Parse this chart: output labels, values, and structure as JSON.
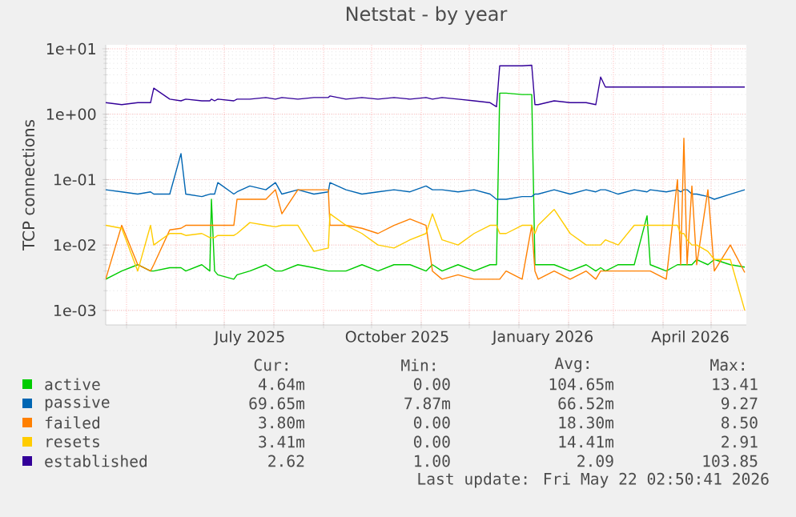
{
  "chart_data": {
    "type": "line",
    "title": "Netstat - by year",
    "ylabel": "TCP connections",
    "log": true,
    "grid": true,
    "legend": "bottom",
    "xlim": [
      "2025-04-18",
      "2026-05-23"
    ],
    "xticks": [
      {
        "value": "2025-05-01",
        "label": null
      },
      {
        "value": "2025-06-01",
        "label": null
      },
      {
        "value": "2025-07-01",
        "label": null
      },
      {
        "value": "2025-08-01",
        "label": null
      },
      {
        "value": "2025-09-01",
        "label": null
      },
      {
        "value": "2025-10-01",
        "label": null
      },
      {
        "value": "2025-11-01",
        "label": null
      },
      {
        "value": "2025-12-01",
        "label": null
      },
      {
        "value": "2026-01-01",
        "label": null
      },
      {
        "value": "2026-02-01",
        "label": null
      },
      {
        "value": "2026-03-01",
        "label": null
      },
      {
        "value": "2026-04-01",
        "label": null
      },
      {
        "value": "2026-05-01",
        "label": null
      },
      {
        "value": "2025-07-17",
        "label": "July 2025"
      },
      {
        "value": "2025-10-17",
        "label": "October 2025"
      },
      {
        "value": "2026-01-16",
        "label": "January 2026"
      },
      {
        "value": "2026-04-18",
        "label": "April 2026"
      }
    ],
    "ylim": [
      0.0006,
      11.5
    ],
    "yticks": [
      {
        "value": 0.001,
        "label": "1e-03"
      },
      {
        "value": 0.01,
        "label": "1e-02"
      },
      {
        "value": 0.1,
        "label": "1e-01"
      },
      {
        "value": 1,
        "label": "1e+00"
      },
      {
        "value": 10,
        "label": "1e+01"
      }
    ],
    "x": [
      "2025-04-18",
      "2025-04-28",
      "2025-05-08",
      "2025-05-16",
      "2025-05-18",
      "2025-05-28",
      "2025-06-04",
      "2025-06-07",
      "2025-06-17",
      "2025-06-22",
      "2025-06-23",
      "2025-06-25",
      "2025-06-27",
      "2025-07-07",
      "2025-07-09",
      "2025-07-17",
      "2025-07-27",
      "2025-08-02",
      "2025-08-06",
      "2025-08-16",
      "2025-08-26",
      "2025-09-04",
      "2025-09-05",
      "2025-09-15",
      "2025-09-25",
      "2025-10-05",
      "2025-10-15",
      "2025-10-25",
      "2025-11-04",
      "2025-11-08",
      "2025-11-14",
      "2025-11-24",
      "2025-12-04",
      "2025-12-14",
      "2025-12-18",
      "2025-12-20",
      "2025-12-24",
      "2026-01-03",
      "2026-01-09",
      "2026-01-11",
      "2026-01-13",
      "2026-01-23",
      "2026-02-02",
      "2026-02-12",
      "2026-02-18",
      "2026-02-21",
      "2026-02-24",
      "2026-03-04",
      "2026-03-14",
      "2026-03-22",
      "2026-03-24",
      "2026-04-03",
      "2026-04-10",
      "2026-04-12",
      "2026-04-14",
      "2026-04-16",
      "2026-04-19",
      "2026-04-22",
      "2026-04-29",
      "2026-05-03",
      "2026-05-13",
      "2026-05-22"
    ],
    "series": [
      {
        "name": "active",
        "color": "#00cc00",
        "values": [
          0.003,
          0.004,
          0.005,
          0.004,
          0.004,
          0.0045,
          0.0045,
          0.004,
          0.005,
          0.004,
          0.05,
          0.004,
          0.0035,
          0.003,
          0.0035,
          0.004,
          0.005,
          0.004,
          0.004,
          0.005,
          0.0045,
          0.004,
          0.004,
          0.004,
          0.005,
          0.004,
          0.005,
          0.005,
          0.004,
          0.005,
          0.004,
          0.005,
          0.004,
          0.005,
          0.005,
          2.1,
          2.1,
          2.0,
          2.0,
          0.005,
          0.005,
          0.005,
          0.004,
          0.005,
          0.004,
          0.0045,
          0.004,
          0.005,
          0.005,
          0.028,
          0.005,
          0.004,
          0.005,
          0.005,
          0.005,
          0.005,
          0.005,
          0.006,
          0.005,
          0.006,
          0.005,
          0.0046
        ]
      },
      {
        "name": "passive",
        "color": "#0066b3",
        "values": [
          0.07,
          0.065,
          0.06,
          0.065,
          0.06,
          0.06,
          0.25,
          0.06,
          0.055,
          0.06,
          0.06,
          0.06,
          0.09,
          0.06,
          0.065,
          0.08,
          0.07,
          0.09,
          0.06,
          0.07,
          0.06,
          0.065,
          0.09,
          0.07,
          0.06,
          0.065,
          0.07,
          0.065,
          0.08,
          0.07,
          0.07,
          0.065,
          0.07,
          0.06,
          0.05,
          0.05,
          0.05,
          0.055,
          0.055,
          0.06,
          0.06,
          0.07,
          0.06,
          0.07,
          0.065,
          0.07,
          0.07,
          0.06,
          0.07,
          0.065,
          0.07,
          0.065,
          0.07,
          0.065,
          0.07,
          0.07,
          0.06,
          0.06,
          0.055,
          0.05,
          0.06,
          0.07
        ]
      },
      {
        "name": "failed",
        "color": "#ff8000",
        "values": [
          0.003,
          0.02,
          0.005,
          0.004,
          0.005,
          0.017,
          0.018,
          0.02,
          0.02,
          0.02,
          0.02,
          0.02,
          0.02,
          0.02,
          0.05,
          0.05,
          0.05,
          0.07,
          0.03,
          0.07,
          0.07,
          0.07,
          0.02,
          0.02,
          0.018,
          0.015,
          0.02,
          0.025,
          0.02,
          0.004,
          0.003,
          0.0035,
          0.003,
          0.003,
          0.003,
          0.003,
          0.004,
          0.003,
          0.02,
          0.004,
          0.003,
          0.004,
          0.003,
          0.004,
          0.003,
          0.004,
          0.004,
          0.004,
          0.004,
          0.004,
          0.004,
          0.003,
          0.1,
          0.005,
          0.43,
          0.005,
          0.08,
          0.005,
          0.07,
          0.004,
          0.01,
          0.0038
        ]
      },
      {
        "name": "resets",
        "color": "#ffcc00",
        "values": [
          0.02,
          0.018,
          0.004,
          0.02,
          0.01,
          0.015,
          0.015,
          0.014,
          0.015,
          0.013,
          0.013,
          0.013,
          0.014,
          0.014,
          0.015,
          0.022,
          0.02,
          0.019,
          0.02,
          0.02,
          0.008,
          0.009,
          0.03,
          0.02,
          0.015,
          0.01,
          0.009,
          0.012,
          0.015,
          0.03,
          0.012,
          0.01,
          0.015,
          0.02,
          0.02,
          0.015,
          0.015,
          0.02,
          0.02,
          0.015,
          0.02,
          0.035,
          0.015,
          0.01,
          0.01,
          0.01,
          0.012,
          0.01,
          0.02,
          0.02,
          0.02,
          0.02,
          0.02,
          0.015,
          0.015,
          0.012,
          0.01,
          0.01,
          0.008,
          0.006,
          0.006,
          0.001
        ]
      },
      {
        "name": "established",
        "color": "#330099",
        "values": [
          1.5,
          1.4,
          1.5,
          1.5,
          2.5,
          1.7,
          1.6,
          1.7,
          1.6,
          1.6,
          1.7,
          1.6,
          1.7,
          1.6,
          1.7,
          1.7,
          1.8,
          1.7,
          1.8,
          1.7,
          1.8,
          1.8,
          1.9,
          1.7,
          1.8,
          1.7,
          1.8,
          1.7,
          1.8,
          1.7,
          1.8,
          1.7,
          1.6,
          1.5,
          1.3,
          5.5,
          5.5,
          5.5,
          5.6,
          1.4,
          1.4,
          1.6,
          1.5,
          1.5,
          1.4,
          3.7,
          2.6,
          2.6,
          2.6,
          2.6,
          2.6,
          2.6,
          2.6,
          2.6,
          2.6,
          2.6,
          2.6,
          2.6,
          2.6,
          2.6,
          2.6,
          2.6
        ]
      }
    ],
    "annotations": [
      "Cur:",
      "Min:",
      "Avg:",
      "Max:",
      "4.64m",
      "0.00",
      "104.65m",
      "13.41",
      "69.65m",
      "7.87m",
      "66.52m",
      "9.27",
      "3.80m",
      "0.00",
      "18.30m",
      "8.50",
      "3.41m",
      "0.00",
      "14.41m",
      "2.91",
      "2.62",
      "1.00",
      "2.09",
      "103.85",
      "Last update: Fri May 22 02:50:41 2026"
    ]
  }
}
